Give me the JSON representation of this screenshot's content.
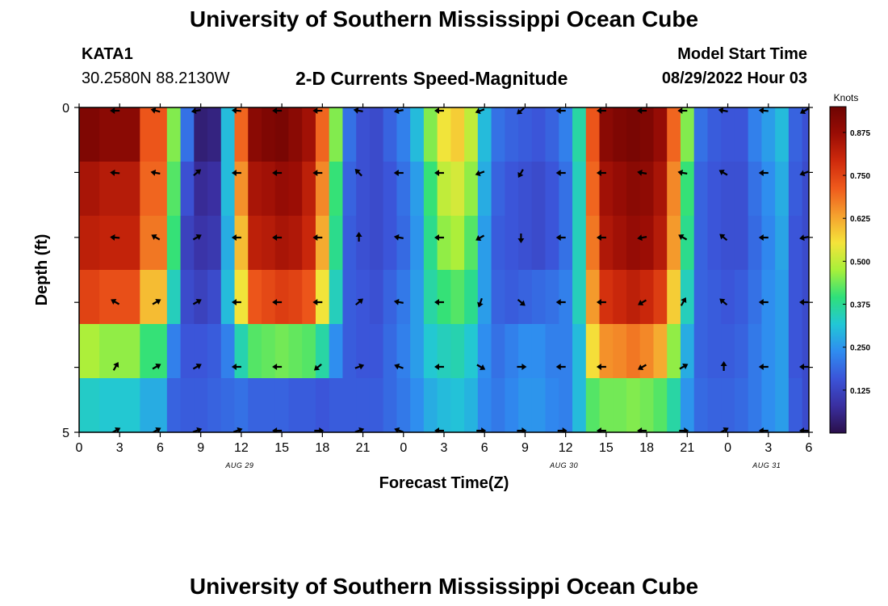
{
  "header": {
    "title": "University of Southern Mississippi Ocean Cube",
    "station": "KATA1",
    "coords": "30.2580N  88.2130W",
    "subtitle": "2-D Currents Speed-Magnitude",
    "model_start_label": "Model Start Time",
    "model_start_value": "08/29/2022 Hour 03"
  },
  "footer": {
    "title": "University of Southern Mississippi Ocean Cube"
  },
  "chart_data": {
    "type": "heatmap",
    "xlabel": "Forecast Time(Z)",
    "ylabel": "Depth (ft)",
    "x_tick_labels": [
      "0",
      "3",
      "6",
      "9",
      "12",
      "15",
      "18",
      "21",
      "0",
      "3",
      "6",
      "9",
      "12",
      "15",
      "18",
      "21",
      "0",
      "3",
      "6"
    ],
    "y_tick_labels": [
      "0",
      "",
      "",
      "",
      "",
      "5"
    ],
    "y_range": [
      0,
      5
    ],
    "date_labels": [
      {
        "text": "AUG 29",
        "at_tick": 4
      },
      {
        "text": "AUG 30",
        "at_tick": 12
      },
      {
        "text": "AUG 31",
        "at_tick": 17
      }
    ],
    "colorbar": {
      "unit": "Knots",
      "min": 0,
      "max": 0.95,
      "ticks": [
        "0.875",
        "0.750",
        "0.625",
        "0.500",
        "0.375",
        "0.250",
        "0.125"
      ],
      "tick_values": [
        0.875,
        0.75,
        0.625,
        0.5,
        0.375,
        0.25,
        0.125
      ],
      "colors": [
        "#2a0f4a",
        "#3a2fa0",
        "#3b54d8",
        "#2f8cf0",
        "#22c7d6",
        "#2fe07a",
        "#a8f03a",
        "#f5e33a",
        "#f5a02e",
        "#ef5a1c",
        "#cf2a0c",
        "#9a0d05",
        "#6e0402"
      ]
    },
    "speed_time_hours": [
      0,
      3,
      6,
      7,
      8,
      9,
      10,
      11,
      12,
      13,
      14,
      15,
      16,
      17,
      18,
      19,
      20,
      21,
      22,
      23,
      24,
      25,
      26,
      27,
      28,
      29,
      30,
      31,
      32,
      33,
      34,
      35,
      36,
      37,
      38,
      39,
      40,
      41,
      42,
      43,
      44,
      45,
      46,
      47,
      48,
      49,
      50,
      51,
      52,
      53,
      54
    ],
    "speed_profiles": {
      "row_0": [
        0.92,
        0.9,
        0.72,
        0.45,
        0.2,
        0.04,
        0.05,
        0.3,
        0.7,
        0.9,
        0.92,
        0.93,
        0.9,
        0.86,
        0.7,
        0.45,
        0.2,
        0.15,
        0.14,
        0.18,
        0.22,
        0.3,
        0.45,
        0.55,
        0.58,
        0.5,
        0.3,
        0.2,
        0.18,
        0.17,
        0.16,
        0.18,
        0.22,
        0.36,
        0.72,
        0.9,
        0.92,
        0.93,
        0.92,
        0.88,
        0.7,
        0.45,
        0.2,
        0.17,
        0.16,
        0.16,
        0.22,
        0.26,
        0.3,
        0.18,
        0.15
      ],
      "row_1": [
        0.85,
        0.83,
        0.7,
        0.42,
        0.15,
        0.07,
        0.08,
        0.3,
        0.65,
        0.85,
        0.86,
        0.88,
        0.87,
        0.82,
        0.66,
        0.4,
        0.18,
        0.15,
        0.14,
        0.16,
        0.2,
        0.26,
        0.4,
        0.5,
        0.52,
        0.46,
        0.28,
        0.18,
        0.16,
        0.15,
        0.14,
        0.16,
        0.2,
        0.34,
        0.7,
        0.86,
        0.88,
        0.9,
        0.89,
        0.85,
        0.66,
        0.4,
        0.18,
        0.16,
        0.15,
        0.15,
        0.2,
        0.24,
        0.28,
        0.17,
        0.14
      ],
      "row_2": [
        0.82,
        0.81,
        0.68,
        0.4,
        0.12,
        0.09,
        0.1,
        0.28,
        0.6,
        0.82,
        0.83,
        0.85,
        0.84,
        0.8,
        0.62,
        0.38,
        0.17,
        0.15,
        0.14,
        0.16,
        0.19,
        0.25,
        0.38,
        0.46,
        0.48,
        0.42,
        0.26,
        0.17,
        0.16,
        0.15,
        0.14,
        0.16,
        0.2,
        0.34,
        0.68,
        0.84,
        0.86,
        0.88,
        0.87,
        0.83,
        0.64,
        0.38,
        0.18,
        0.16,
        0.15,
        0.15,
        0.19,
        0.23,
        0.27,
        0.16,
        0.14
      ],
      "row_3": [
        0.75,
        0.73,
        0.6,
        0.34,
        0.14,
        0.12,
        0.14,
        0.3,
        0.55,
        0.72,
        0.74,
        0.76,
        0.75,
        0.72,
        0.55,
        0.34,
        0.17,
        0.16,
        0.15,
        0.18,
        0.21,
        0.26,
        0.36,
        0.4,
        0.42,
        0.38,
        0.26,
        0.18,
        0.17,
        0.18,
        0.19,
        0.2,
        0.22,
        0.34,
        0.64,
        0.78,
        0.8,
        0.82,
        0.8,
        0.76,
        0.58,
        0.34,
        0.18,
        0.17,
        0.16,
        0.17,
        0.2,
        0.24,
        0.26,
        0.16,
        0.14
      ],
      "row_4": [
        0.48,
        0.46,
        0.4,
        0.22,
        0.16,
        0.16,
        0.17,
        0.22,
        0.35,
        0.42,
        0.43,
        0.44,
        0.43,
        0.42,
        0.36,
        0.24,
        0.17,
        0.16,
        0.16,
        0.19,
        0.22,
        0.26,
        0.32,
        0.34,
        0.35,
        0.32,
        0.24,
        0.2,
        0.22,
        0.24,
        0.24,
        0.22,
        0.22,
        0.3,
        0.56,
        0.65,
        0.66,
        0.68,
        0.66,
        0.62,
        0.46,
        0.28,
        0.18,
        0.17,
        0.17,
        0.18,
        0.21,
        0.24,
        0.26,
        0.16,
        0.14
      ],
      "row_5": [
        0.33,
        0.32,
        0.28,
        0.18,
        0.17,
        0.17,
        0.18,
        0.19,
        0.2,
        0.18,
        0.18,
        0.18,
        0.17,
        0.17,
        0.16,
        0.17,
        0.17,
        0.17,
        0.17,
        0.19,
        0.21,
        0.24,
        0.28,
        0.3,
        0.31,
        0.29,
        0.23,
        0.21,
        0.23,
        0.25,
        0.25,
        0.23,
        0.22,
        0.3,
        0.42,
        0.44,
        0.44,
        0.45,
        0.44,
        0.42,
        0.36,
        0.25,
        0.19,
        0.18,
        0.18,
        0.19,
        0.21,
        0.24,
        0.26,
        0.17,
        0.14
      ]
    },
    "arrow_hours": [
      0,
      3,
      6,
      9,
      12,
      15,
      18,
      21,
      24,
      27,
      30,
      33,
      36,
      39,
      42,
      45,
      48,
      51,
      54
    ],
    "arrow_directions_deg": {
      "row_0": [
        180,
        180,
        165,
        190,
        175,
        180,
        180,
        170,
        190,
        180,
        200,
        220,
        180,
        180,
        180,
        180,
        170,
        175,
        210
      ],
      "row_1": [
        180,
        175,
        170,
        40,
        180,
        180,
        180,
        135,
        180,
        180,
        200,
        240,
        180,
        180,
        170,
        170,
        150,
        180,
        200
      ],
      "row_2": [
        180,
        175,
        150,
        30,
        180,
        180,
        180,
        90,
        170,
        180,
        210,
        270,
        180,
        180,
        190,
        150,
        140,
        180,
        190
      ],
      "row_3": [
        180,
        150,
        30,
        30,
        180,
        180,
        180,
        40,
        170,
        180,
        250,
        320,
        180,
        180,
        210,
        60,
        140,
        180,
        180
      ],
      "row_4": [
        180,
        60,
        30,
        30,
        180,
        180,
        220,
        20,
        160,
        180,
        330,
        0,
        180,
        180,
        210,
        30,
        90,
        180,
        180
      ],
      "row_5": [
        180,
        30,
        30,
        20,
        20,
        180,
        0,
        20,
        160,
        180,
        0,
        0,
        0,
        180,
        180,
        0,
        30,
        180,
        180
      ]
    }
  }
}
